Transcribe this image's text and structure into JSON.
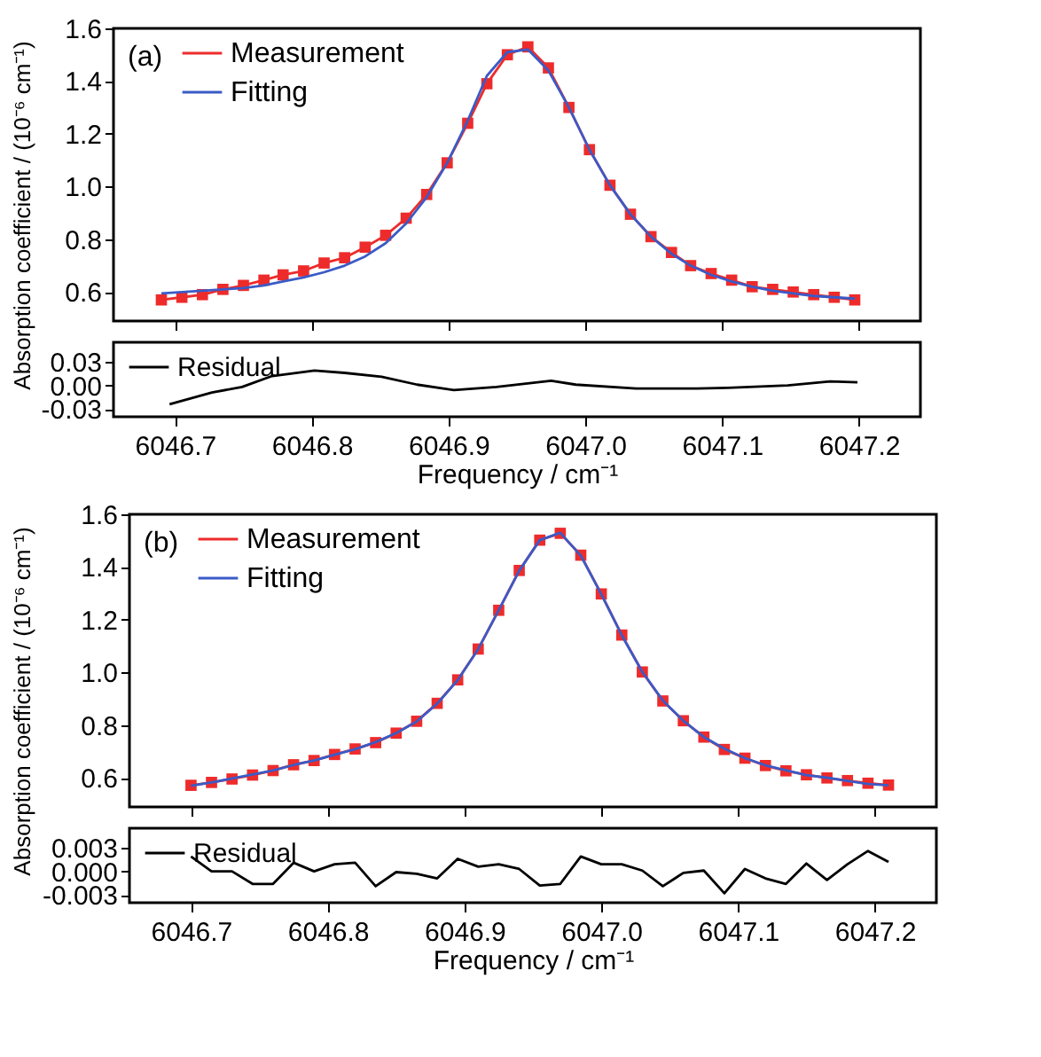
{
  "chart_data": [
    {
      "type": "line",
      "annotations": [
        "(a)"
      ],
      "ylabel": "Absorption coefficient / (10⁻⁶ cm⁻¹)",
      "legend": "top left",
      "tick_labels": "y",
      "xlim": [
        6046.655,
        6047.245
      ],
      "xticks": [
        6046.7,
        6046.8,
        6046.9,
        6047.0,
        6047.1,
        6047.2
      ],
      "ylim": [
        0.49,
        1.6
      ],
      "yticks": [
        0.6,
        0.8,
        {
          "value": 1.0,
          "label": "1.0"
        },
        1.2,
        1.4,
        1.6
      ],
      "series": [
        {
          "name": "Measurement",
          "color": "#ee2b2b",
          "marker": "square",
          "x": [
            6046.69,
            6046.705,
            6046.72,
            6046.735,
            6046.75,
            6046.765,
            6046.779,
            6046.794,
            6046.809,
            6046.824,
            6046.839,
            6046.854,
            6046.869,
            6046.884,
            6046.899,
            6046.914,
            6046.928,
            6046.943,
            6046.958,
            6046.973,
            6046.988,
            6047.003,
            6047.018,
            6047.033,
            6047.048,
            6047.063,
            6047.077,
            6047.092,
            6047.107,
            6047.122,
            6047.137,
            6047.152,
            6047.167,
            6047.182,
            6047.197
          ],
          "values": [
            0.57,
            0.58,
            0.59,
            0.61,
            0.625,
            0.645,
            0.665,
            0.68,
            0.71,
            0.73,
            0.77,
            0.815,
            0.88,
            0.97,
            1.09,
            1.24,
            1.39,
            1.5,
            1.53,
            1.45,
            1.3,
            1.14,
            1.005,
            0.895,
            0.81,
            0.75,
            0.7,
            0.67,
            0.645,
            0.62,
            0.61,
            0.6,
            0.59,
            0.58,
            0.57
          ]
        },
        {
          "name": "Fitting",
          "color": "#3a5bc7",
          "x": [
            6046.69,
            6046.705,
            6046.72,
            6046.735,
            6046.75,
            6046.765,
            6046.779,
            6046.794,
            6046.809,
            6046.824,
            6046.839,
            6046.854,
            6046.869,
            6046.884,
            6046.899,
            6046.914,
            6046.928,
            6046.943,
            6046.958,
            6046.973,
            6046.988,
            6047.003,
            6047.018,
            6047.033,
            6047.048,
            6047.063,
            6047.077,
            6047.092,
            6047.107,
            6047.122,
            6047.137,
            6047.152,
            6047.167,
            6047.182,
            6047.197
          ],
          "values": [
            0.595,
            0.6,
            0.605,
            0.61,
            0.615,
            0.625,
            0.64,
            0.655,
            0.675,
            0.7,
            0.735,
            0.785,
            0.86,
            0.96,
            1.09,
            1.25,
            1.42,
            1.51,
            1.52,
            1.44,
            1.3,
            1.14,
            1.005,
            0.895,
            0.81,
            0.745,
            0.7,
            0.665,
            0.64,
            0.62,
            0.605,
            0.595,
            0.585,
            0.58,
            0.575
          ]
        }
      ]
    },
    {
      "type": "line",
      "xlabel": "Frequency / cm⁻¹",
      "legend": "top left",
      "xlim": [
        6046.655,
        6047.245
      ],
      "xticks": [
        6046.7,
        6046.8,
        6046.9,
        {
          "value": 6047.0,
          "label": "6047.0"
        },
        6047.1,
        6047.2
      ],
      "ylim": [
        -0.04,
        0.055
      ],
      "yticks": [
        {
          "value": -0.03,
          "label": "-0.03"
        },
        {
          "value": 0,
          "label": "0.00"
        },
        0.03
      ],
      "series": [
        {
          "name": "Residual",
          "color": "#000000",
          "x": [
            6046.696,
            6046.727,
            6046.749,
            6046.771,
            6046.802,
            6046.824,
            6046.851,
            6046.877,
            6046.904,
            6046.935,
            6046.975,
            6046.993,
            6047.037,
            6047.082,
            6047.104,
            6047.148,
            6047.179,
            6047.199
          ],
          "values": [
            -0.024,
            -0.009,
            -0.002,
            0.012,
            0.019,
            0.016,
            0.011,
            0.001,
            -0.006,
            -0.002,
            0.006,
            0.001,
            -0.004,
            -0.004,
            -0.003,
            0.0,
            0.005,
            0.004
          ]
        }
      ]
    },
    {
      "type": "line",
      "annotations": [
        "(b)"
      ],
      "ylabel": "Absorption coefficient / (10⁻⁶ cm⁻¹)",
      "legend": "top left",
      "tick_labels": "y",
      "xlim": [
        6046.655,
        6047.245
      ],
      "xticks": [
        6046.7,
        6046.8,
        6046.9,
        6047.0,
        6047.1,
        6047.2
      ],
      "ylim": [
        0.49,
        1.6
      ],
      "yticks": [
        0.6,
        0.8,
        {
          "value": 1.0,
          "label": "1.0"
        },
        1.2,
        1.4,
        1.6
      ],
      "series": [
        {
          "name": "Measurement",
          "color": "#ee2b2b",
          "marker": "square",
          "x": [
            6046.7,
            6046.715,
            6046.73,
            6046.745,
            6046.76,
            6046.775,
            6046.79,
            6046.805,
            6046.82,
            6046.835,
            6046.85,
            6046.865,
            6046.88,
            6046.895,
            6046.91,
            6046.925,
            6046.94,
            6046.955,
            6046.97,
            6046.985,
            6047.0,
            6047.015,
            6047.03,
            6047.045,
            6047.06,
            6047.075,
            6047.09,
            6047.105,
            6047.12,
            6047.135,
            6047.15,
            6047.165,
            6047.18,
            6047.195,
            6047.21
          ],
          "values": [
            0.572,
            0.583,
            0.596,
            0.611,
            0.628,
            0.65,
            0.666,
            0.689,
            0.71,
            0.734,
            0.77,
            0.815,
            0.883,
            0.972,
            1.089,
            1.236,
            1.387,
            1.502,
            1.528,
            1.445,
            1.298,
            1.142,
            1.002,
            0.892,
            0.817,
            0.755,
            0.708,
            0.675,
            0.647,
            0.627,
            0.612,
            0.6,
            0.59,
            0.58,
            0.573
          ]
        },
        {
          "name": "Fitting",
          "color": "#3a5bc7",
          "x": [
            6046.7,
            6046.715,
            6046.73,
            6046.745,
            6046.76,
            6046.775,
            6046.79,
            6046.805,
            6046.82,
            6046.835,
            6046.85,
            6046.865,
            6046.88,
            6046.895,
            6046.91,
            6046.925,
            6046.94,
            6046.955,
            6046.97,
            6046.985,
            6047.0,
            6047.015,
            6047.03,
            6047.045,
            6047.06,
            6047.075,
            6047.09,
            6047.105,
            6047.12,
            6047.135,
            6047.15,
            6047.165,
            6047.18,
            6047.195,
            6047.21
          ],
          "values": [
            0.57,
            0.583,
            0.598,
            0.613,
            0.628,
            0.649,
            0.666,
            0.688,
            0.709,
            0.736,
            0.77,
            0.814,
            0.882,
            0.971,
            1.089,
            1.236,
            1.386,
            1.502,
            1.53,
            1.443,
            1.297,
            1.141,
            1.002,
            0.894,
            0.817,
            0.755,
            0.711,
            0.675,
            0.648,
            0.629,
            0.611,
            0.601,
            0.589,
            0.577,
            0.572
          ]
        }
      ]
    },
    {
      "type": "line",
      "xlabel": "Frequency / cm⁻¹",
      "legend": "top left",
      "xlim": [
        6046.655,
        6047.245
      ],
      "xticks": [
        6046.7,
        6046.8,
        6046.9,
        {
          "value": 6047.0,
          "label": "6047.0"
        },
        6047.1,
        6047.2
      ],
      "ylim": [
        -0.004,
        0.0055
      ],
      "yticks": [
        {
          "value": -0.003,
          "label": "-0.003"
        },
        {
          "value": 0,
          "label": "0.000"
        },
        0.003
      ],
      "series": [
        {
          "name": "Residual",
          "color": "#000000",
          "x": [
            6046.7,
            6046.715,
            6046.73,
            6046.745,
            6046.76,
            6046.775,
            6046.79,
            6046.805,
            6046.82,
            6046.835,
            6046.85,
            6046.865,
            6046.88,
            6046.895,
            6046.91,
            6046.925,
            6046.94,
            6046.955,
            6046.97,
            6046.985,
            6047.0,
            6047.015,
            6047.03,
            6047.045,
            6047.06,
            6047.075,
            6047.09,
            6047.105,
            6047.12,
            6047.135,
            6047.15,
            6047.165,
            6047.18,
            6047.195,
            6047.21
          ],
          "values": [
            0.0019,
            0.0,
            0.0,
            -0.0016,
            -0.0016,
            0.0011,
            0.0,
            0.0009,
            0.0011,
            -0.0019,
            -0.0001,
            -0.0003,
            -0.0009,
            0.0016,
            0.0006,
            0.0009,
            0.0003,
            -0.0018,
            -0.0016,
            0.0019,
            0.0009,
            0.0009,
            0.0001,
            -0.0019,
            -0.0002,
            0.0001,
            -0.0028,
            0.0003,
            -0.0009,
            -0.0016,
            0.001,
            -0.0011,
            0.0009,
            0.0026,
            0.0012
          ]
        }
      ]
    }
  ]
}
